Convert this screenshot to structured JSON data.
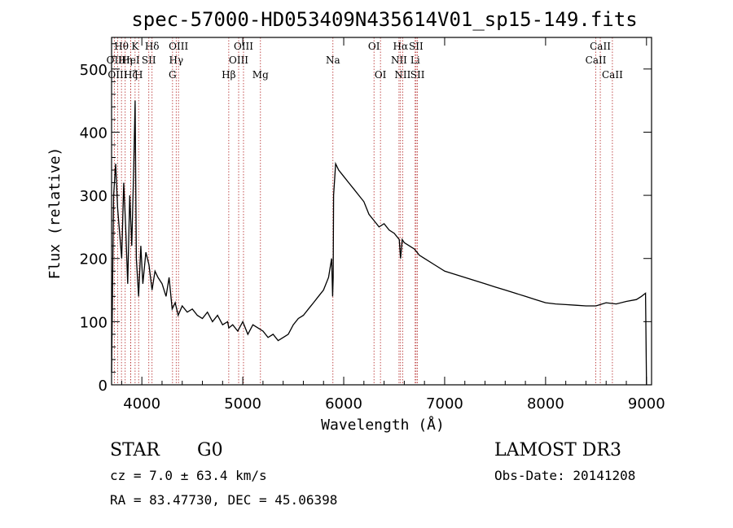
{
  "chart_data": {
    "type": "line",
    "title": "spec-57000-HD053409N435614V01_sp15-149.fits",
    "xlabel": "Wavelength (Å)",
    "ylabel": "Flux (relative)",
    "xlim": [
      3700,
      9050
    ],
    "ylim": [
      0,
      550
    ],
    "xticks": [
      4000,
      5000,
      6000,
      7000,
      8000,
      9000
    ],
    "yticks": [
      0,
      100,
      200,
      300,
      400,
      500
    ],
    "spectrum": {
      "x": [
        3700,
        3720,
        3740,
        3760,
        3780,
        3800,
        3820,
        3840,
        3860,
        3880,
        3900,
        3920,
        3933,
        3945,
        3968,
        3990,
        4010,
        4040,
        4070,
        4101,
        4130,
        4160,
        4200,
        4240,
        4270,
        4300,
        4330,
        4360,
        4400,
        4450,
        4500,
        4550,
        4600,
        4650,
        4700,
        4750,
        4800,
        4850,
        4861,
        4900,
        4950,
        5000,
        5050,
        5100,
        5150,
        5200,
        5250,
        5300,
        5350,
        5400,
        5450,
        5500,
        5550,
        5600,
        5650,
        5700,
        5750,
        5800,
        5850,
        5880,
        5890,
        5896,
        5900,
        5920,
        5950,
        6000,
        6050,
        6100,
        6150,
        6200,
        6250,
        6300,
        6350,
        6400,
        6450,
        6500,
        6550,
        6563,
        6580,
        6600,
        6650,
        6700,
        6750,
        6800,
        6900,
        7000,
        7100,
        7200,
        7300,
        7400,
        7500,
        7600,
        7700,
        7800,
        7900,
        8000,
        8100,
        8200,
        8300,
        8400,
        8500,
        8600,
        8700,
        8800,
        8900,
        8950,
        8990,
        9000
      ],
      "y": [
        20,
        300,
        350,
        280,
        240,
        200,
        320,
        250,
        160,
        300,
        220,
        350,
        450,
        200,
        140,
        220,
        160,
        210,
        190,
        150,
        180,
        170,
        160,
        140,
        170,
        120,
        130,
        110,
        125,
        115,
        120,
        110,
        105,
        115,
        100,
        110,
        95,
        100,
        90,
        95,
        85,
        100,
        80,
        95,
        90,
        85,
        75,
        80,
        70,
        75,
        80,
        95,
        105,
        110,
        120,
        130,
        140,
        150,
        170,
        200,
        140,
        170,
        300,
        350,
        340,
        330,
        320,
        310,
        300,
        290,
        270,
        260,
        250,
        255,
        245,
        240,
        230,
        200,
        230,
        225,
        220,
        215,
        205,
        200,
        190,
        180,
        175,
        170,
        165,
        160,
        155,
        150,
        145,
        140,
        135,
        130,
        128,
        127,
        126,
        125,
        125,
        130,
        128,
        132,
        135,
        140,
        145,
        0
      ]
    },
    "lines": [
      {
        "label": "Hθ",
        "wave": 3798,
        "row": 1
      },
      {
        "label": "OII",
        "wave": 3727,
        "row": 2
      },
      {
        "label": "OIII",
        "wave": 3760,
        "row": 3
      },
      {
        "label": "Hη",
        "wave": 3835,
        "row": 2
      },
      {
        "label": "HeI",
        "wave": 3889,
        "row": 2
      },
      {
        "label": "Hζ",
        "wave": 3889,
        "row": 3
      },
      {
        "label": "K",
        "wave": 3933,
        "row": 1
      },
      {
        "label": "SII",
        "wave": 4069,
        "row": 2
      },
      {
        "label": "H",
        "wave": 3968,
        "row": 3
      },
      {
        "label": "Hδ",
        "wave": 4101,
        "row": 1
      },
      {
        "label": "OIII",
        "wave": 4363,
        "row": 1
      },
      {
        "label": "Hγ",
        "wave": 4340,
        "row": 2
      },
      {
        "label": "G",
        "wave": 4304,
        "row": 3
      },
      {
        "label": "Hβ",
        "wave": 4861,
        "row": 3
      },
      {
        "label": "OIII",
        "wave": 5007,
        "row": 1
      },
      {
        "label": "OIII",
        "wave": 4959,
        "row": 2
      },
      {
        "label": "Mg",
        "wave": 5175,
        "row": 3
      },
      {
        "label": "Na",
        "wave": 5893,
        "row": 2
      },
      {
        "label": "OI",
        "wave": 6300,
        "row": 1
      },
      {
        "label": "OI",
        "wave": 6364,
        "row": 3
      },
      {
        "label": "Hα",
        "wave": 6563,
        "row": 1
      },
      {
        "label": "NII",
        "wave": 6548,
        "row": 2
      },
      {
        "label": "NII",
        "wave": 6584,
        "row": 3
      },
      {
        "label": "SII",
        "wave": 6717,
        "row": 1
      },
      {
        "label": "Li",
        "wave": 6708,
        "row": 2
      },
      {
        "label": "SII",
        "wave": 6731,
        "row": 3
      },
      {
        "label": "CaII",
        "wave": 8542,
        "row": 1
      },
      {
        "label": "CaII",
        "wave": 8498,
        "row": 2
      },
      {
        "label": "CaII",
        "wave": 8662,
        "row": 3
      }
    ],
    "colors": {
      "spectrum": "#000000",
      "line_markers": "#b22222",
      "axes": "#000000"
    }
  },
  "info": {
    "object_class": "STAR",
    "subclass": "G0",
    "survey": "LAMOST DR3",
    "cz": "cz = 7.0 ± 63.4 km/s",
    "obs_date": "Obs-Date: 20141208",
    "coords": "RA =  83.47730, DEC =  45.06398"
  }
}
